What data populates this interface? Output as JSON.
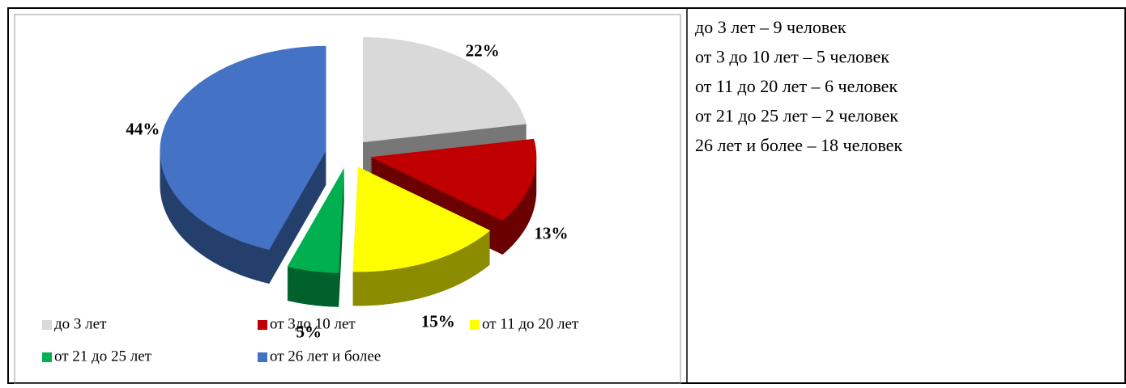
{
  "chart_data": {
    "type": "pie",
    "categories": [
      "до 3 лет",
      "от 3до 10 лет",
      "от 11 до 20 лет",
      "от 21 до 25 лет",
      "от 26 лет и более"
    ],
    "values": [
      22,
      13,
      15,
      5,
      44
    ],
    "value_labels": [
      "22%",
      "13%",
      "15%",
      "5%",
      "44%"
    ],
    "colors": [
      "#d9d9d9",
      "#c00000",
      "#ffff00",
      "#00b050",
      "#4472c4"
    ]
  },
  "text_lines": [
    "до 3 лет – 9 человек",
    "от 3 до 10 лет – 5 человек",
    "от 11 до 20 лет – 6 человек",
    "от 21 до 25 лет – 2 человек",
    "26 лет и более – 18 человек"
  ]
}
